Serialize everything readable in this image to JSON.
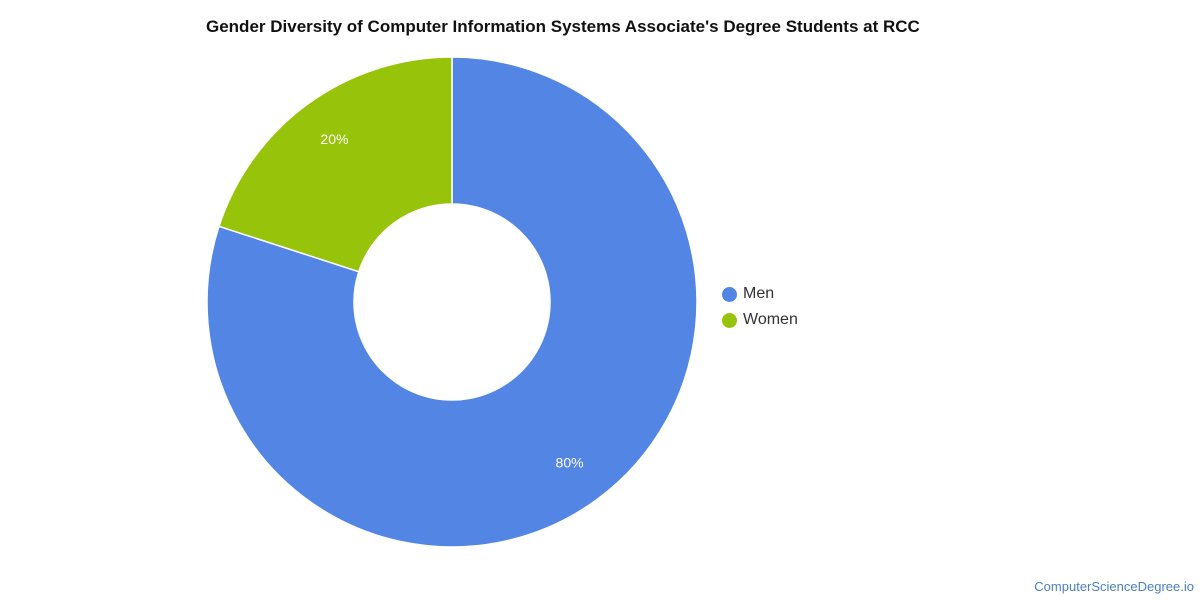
{
  "chart_data": {
    "type": "pie",
    "title": "Gender Diversity of Computer Information Systems Associate's Degree Students at RCC",
    "categories": [
      "Men",
      "Women"
    ],
    "values": [
      80,
      20
    ],
    "data_labels": [
      "80%",
      "20%"
    ],
    "colors": [
      "#5386e4",
      "#97c30a"
    ],
    "donut": true,
    "legend_position": "right"
  },
  "legend": {
    "items": [
      {
        "label": "Men",
        "color": "#5386e4"
      },
      {
        "label": "Women",
        "color": "#97c30a"
      }
    ]
  },
  "source": {
    "text": "ComputerScienceDegree.io"
  }
}
